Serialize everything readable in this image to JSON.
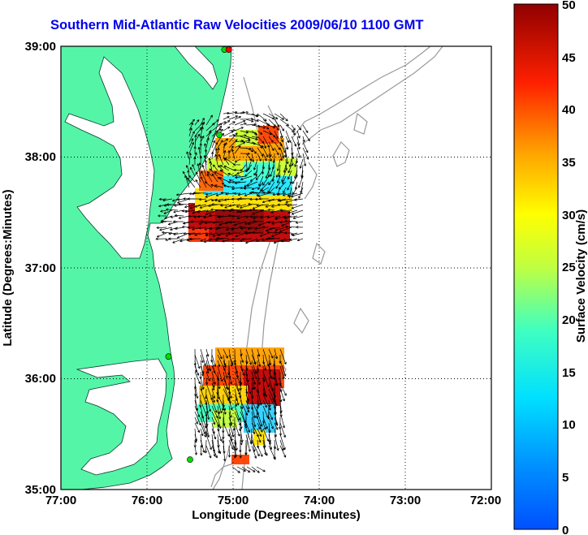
{
  "title": "Southern Mid-Atlantic Raw Velocities 2009/06/10 1100 GMT",
  "map": {
    "xlabel": "Longitude (Degrees:Minutes)",
    "ylabel": "Latitude (Degrees:Minutes)",
    "x_ticks": [
      "77:00",
      "76:00",
      "75:00",
      "74:00",
      "73:00",
      "72:00"
    ],
    "y_ticks": [
      "39:00",
      "38:00",
      "37:00",
      "36:00",
      "35:00"
    ],
    "lon_range": [
      -77,
      -72
    ],
    "lat_range": [
      35,
      39
    ],
    "grid": "dotted",
    "land_color": "#55f5a8",
    "stations": [
      {
        "lon": -75.1,
        "lat": 38.97,
        "color": "#00dd00"
      },
      {
        "lon": -75.05,
        "lat": 38.97,
        "color": "#ff0000"
      },
      {
        "lon": -75.16,
        "lat": 38.2,
        "color": "#00dd00"
      },
      {
        "lon": -75.75,
        "lat": 36.2,
        "color": "#00dd00"
      },
      {
        "lon": -75.5,
        "lat": 35.27,
        "color": "#00dd00"
      }
    ]
  },
  "colorbar": {
    "label": "Surface Velocity (cm/s)",
    "ticks": [
      "0",
      "5",
      "10",
      "15",
      "20",
      "25",
      "30",
      "35",
      "40",
      "45",
      "50"
    ],
    "min": 0,
    "max": 50,
    "colormap": "jet"
  }
}
